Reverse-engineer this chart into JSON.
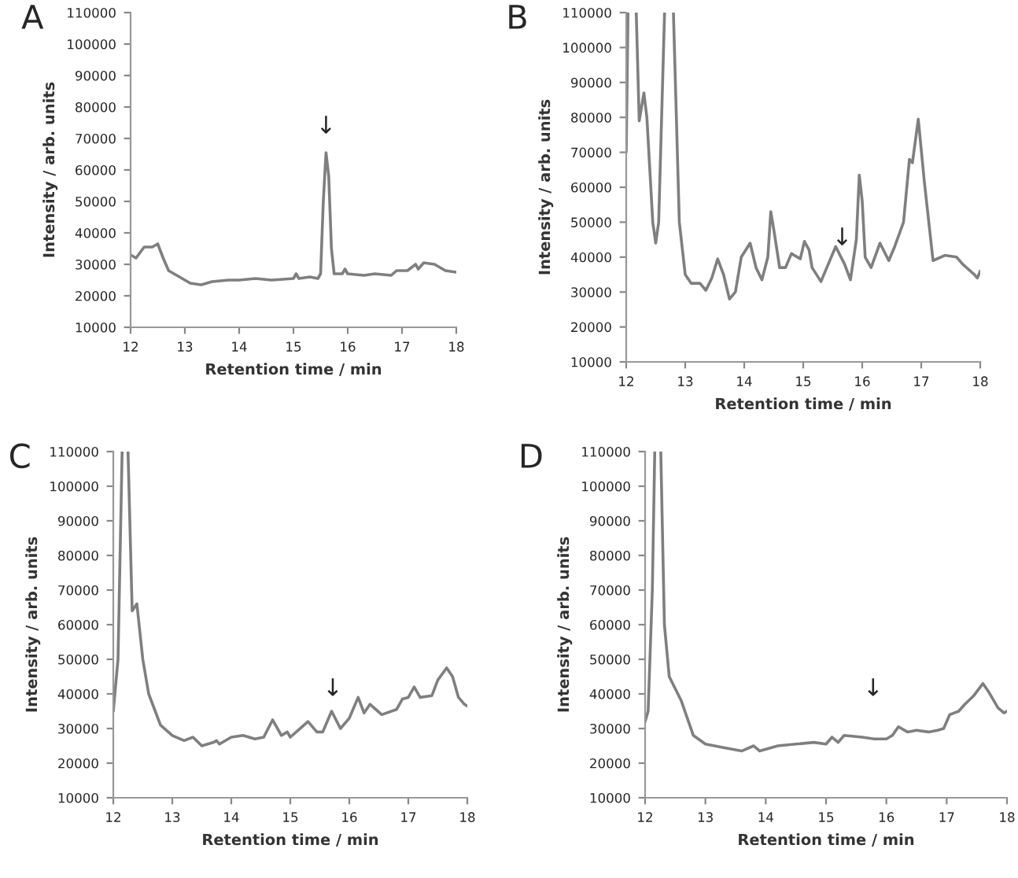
{
  "chart_data": [
    {
      "type": "line",
      "title": "A",
      "xlabel": "Retention time / min",
      "ylabel": "Intensity / arb. units",
      "xlim": [
        12,
        18
      ],
      "xticks": [
        12,
        13,
        14,
        15,
        16,
        17,
        18
      ],
      "ylim": [
        10000,
        110000
      ],
      "yticks": [
        10000,
        20000,
        30000,
        40000,
        50000,
        60000,
        70000,
        80000,
        90000,
        100000,
        110000
      ],
      "grid": false,
      "legend": false,
      "annotations": [
        "↓"
      ],
      "series": [
        {
          "color": "#7f7f7f",
          "x": [
            12,
            12.1,
            12.25,
            12.4,
            12.5,
            12.6,
            12.7,
            12.9,
            13.1,
            13.3,
            13.5,
            13.8,
            14,
            14.3,
            14.6,
            15,
            15.05,
            15.1,
            15.3,
            15.45,
            15.5,
            15.55,
            15.6,
            15.65,
            15.7,
            15.75,
            15.9,
            15.95,
            16,
            16.3,
            16.5,
            16.8,
            16.9,
            17.1,
            17.25,
            17.3,
            17.4,
            17.6,
            17.8,
            18
          ],
          "values": [
            33000,
            32000,
            35500,
            35500,
            36500,
            32000,
            28000,
            26000,
            24000,
            23500,
            24500,
            25000,
            25000,
            25500,
            25000,
            25500,
            27000,
            25500,
            26000,
            25500,
            27000,
            50000,
            65500,
            58000,
            35000,
            27000,
            27000,
            28500,
            27000,
            26500,
            27000,
            26500,
            28000,
            28000,
            30000,
            28500,
            30500,
            30000,
            28000,
            27500
          ]
        }
      ]
    },
    {
      "type": "line",
      "title": "B",
      "xlabel": "Retention time / min",
      "ylabel": "Intensity / arb. units",
      "xlim": [
        12,
        18
      ],
      "xticks": [
        12,
        13,
        14,
        15,
        16,
        17,
        18
      ],
      "ylim": [
        10000,
        110000
      ],
      "yticks": [
        10000,
        20000,
        30000,
        40000,
        50000,
        60000,
        70000,
        80000,
        90000,
        100000,
        110000
      ],
      "grid": false,
      "legend": false,
      "annotations": [
        "↓"
      ],
      "series": [
        {
          "color": "#7f7f7f",
          "x": [
            12,
            12.03,
            12.1,
            12.17,
            12.22,
            12.3,
            12.35,
            12.45,
            12.5,
            12.55,
            12.65,
            12.72,
            12.8,
            12.9,
            13,
            13.1,
            13.25,
            13.35,
            13.45,
            13.55,
            13.65,
            13.75,
            13.85,
            13.95,
            14.1,
            14.2,
            14.3,
            14.4,
            14.45,
            14.5,
            14.6,
            14.7,
            14.8,
            14.95,
            15.02,
            15.1,
            15.15,
            15.3,
            15.4,
            15.55,
            15.7,
            15.8,
            15.9,
            15.95,
            16,
            16.05,
            16.15,
            16.3,
            16.45,
            16.55,
            16.7,
            16.8,
            16.85,
            16.95,
            17.05,
            17.2,
            17.4,
            17.6,
            17.7,
            17.9,
            17.95,
            18
          ],
          "values": [
            70000,
            110000,
            null,
            110000,
            79000,
            87000,
            80000,
            50000,
            44000,
            50000,
            110000,
            null,
            110000,
            50000,
            35000,
            32500,
            32500,
            30500,
            34000,
            39500,
            35000,
            28000,
            30000,
            40000,
            44000,
            37000,
            33500,
            40000,
            53000,
            48000,
            37000,
            37000,
            41000,
            39500,
            44500,
            42000,
            37000,
            33000,
            37000,
            43000,
            38000,
            33500,
            45000,
            63500,
            56000,
            40000,
            37000,
            44000,
            39000,
            43000,
            50000,
            68000,
            67000,
            79500,
            62000,
            39000,
            40500,
            40000,
            38000,
            35000,
            34000,
            36000
          ]
        }
      ]
    },
    {
      "type": "line",
      "title": "C",
      "xlabel": "Retention time / min",
      "ylabel": "Intensity / arb. units",
      "xlim": [
        12,
        18
      ],
      "xticks": [
        12,
        13,
        14,
        15,
        16,
        17,
        18
      ],
      "ylim": [
        10000,
        110000
      ],
      "yticks": [
        10000,
        20000,
        30000,
        40000,
        50000,
        60000,
        70000,
        80000,
        90000,
        100000,
        110000
      ],
      "grid": false,
      "legend": false,
      "annotations": [
        "↓"
      ],
      "series": [
        {
          "color": "#7f7f7f",
          "x": [
            12,
            12.08,
            12.15,
            12.2,
            12.25,
            12.32,
            12.4,
            12.5,
            12.6,
            12.8,
            13,
            13.2,
            13.35,
            13.5,
            13.7,
            13.75,
            13.8,
            14,
            14.2,
            14.4,
            14.55,
            14.7,
            14.85,
            14.95,
            15,
            15.1,
            15.3,
            15.45,
            15.55,
            15.7,
            15.85,
            16,
            16.15,
            16.25,
            16.35,
            16.55,
            16.8,
            16.9,
            17,
            17.1,
            17.2,
            17.4,
            17.5,
            17.65,
            17.75,
            17.85,
            17.95,
            18
          ],
          "values": [
            35000,
            50000,
            110000,
            null,
            110000,
            64000,
            66000,
            50000,
            40000,
            31000,
            28000,
            26500,
            27500,
            25000,
            26000,
            26500,
            25500,
            27500,
            28000,
            27000,
            27500,
            32500,
            28000,
            29000,
            27500,
            29000,
            32000,
            29000,
            29000,
            35000,
            30000,
            33000,
            39000,
            34500,
            37000,
            34000,
            35500,
            38500,
            39000,
            42000,
            39000,
            39500,
            44000,
            47500,
            45000,
            39000,
            37000,
            36500
          ]
        }
      ]
    },
    {
      "type": "line",
      "title": "D",
      "xlabel": "Retention time / min",
      "ylabel": "Intensity / arb. units",
      "xlim": [
        12,
        18
      ],
      "xticks": [
        12,
        13,
        14,
        15,
        16,
        17,
        18
      ],
      "ylim": [
        10000,
        110000
      ],
      "yticks": [
        10000,
        20000,
        30000,
        40000,
        50000,
        60000,
        70000,
        80000,
        90000,
        100000,
        110000
      ],
      "grid": false,
      "legend": false,
      "annotations": [
        "↓"
      ],
      "series": [
        {
          "color": "#7f7f7f",
          "x": [
            12,
            12.05,
            12.12,
            12.16,
            12.21,
            12.26,
            12.32,
            12.4,
            12.6,
            12.8,
            13,
            13.3,
            13.6,
            13.8,
            13.9,
            14.2,
            14.5,
            14.8,
            15,
            15.1,
            15.2,
            15.3,
            15.6,
            15.8,
            16,
            16.1,
            16.2,
            16.35,
            16.5,
            16.7,
            16.85,
            16.95,
            17.05,
            17.2,
            17.3,
            17.45,
            17.6,
            17.7,
            17.85,
            17.95,
            18
          ],
          "values": [
            32000,
            35000,
            70000,
            110000,
            null,
            110000,
            60000,
            45000,
            38000,
            28000,
            25500,
            24500,
            23500,
            25000,
            23500,
            25000,
            25500,
            26000,
            25500,
            27500,
            26000,
            28000,
            27500,
            27000,
            27000,
            28000,
            30500,
            29000,
            29500,
            29000,
            29500,
            30000,
            34000,
            35000,
            37000,
            39500,
            43000,
            40500,
            36000,
            34500,
            35000
          ]
        }
      ]
    }
  ]
}
